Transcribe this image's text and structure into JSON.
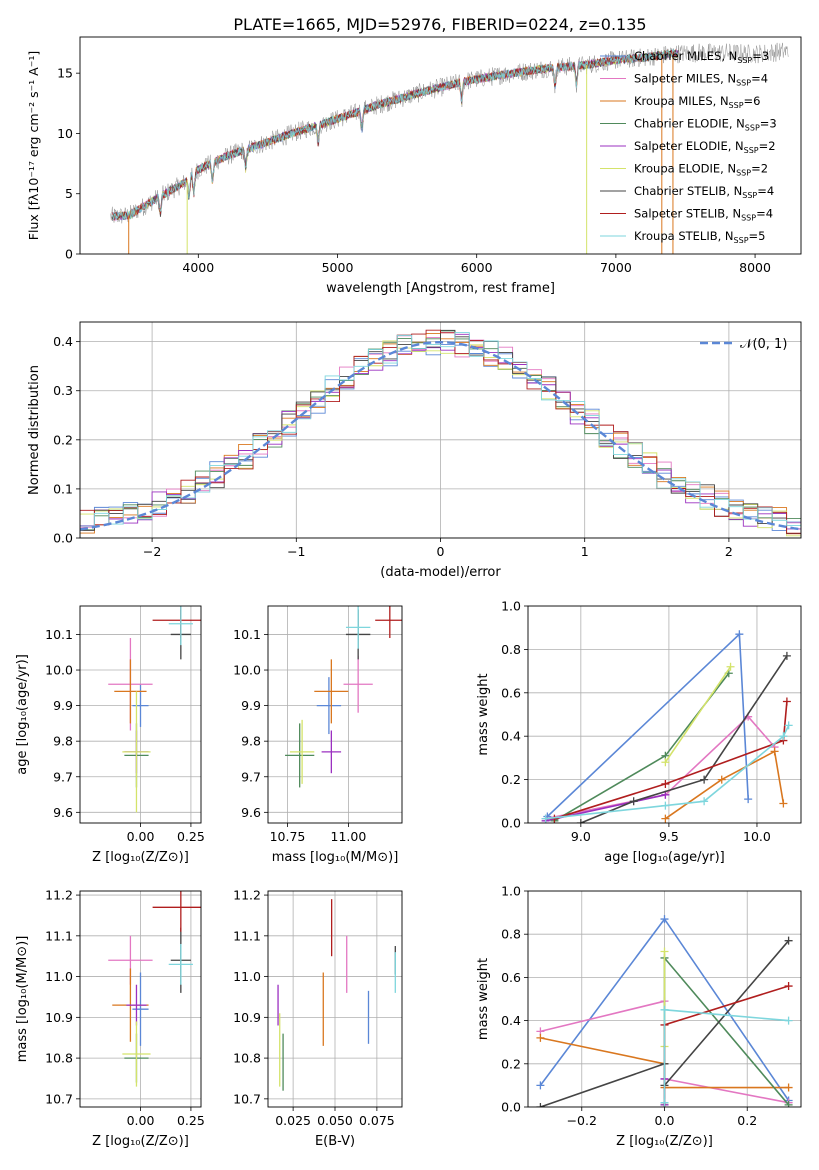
{
  "figure": {
    "title": "PLATE=1665, MJD=52976, FIBERID=0224, z=0.135"
  },
  "legend_entries": [
    {
      "text": "Chabrier MILES, N",
      "sub": "SSP",
      "tail": "=3",
      "color": "#5b87d6"
    },
    {
      "text": "Salpeter MILES, N",
      "sub": "SSP",
      "tail": "=4",
      "color": "#e377c2"
    },
    {
      "text": "Kroupa MILES, N",
      "sub": "SSP",
      "tail": "=6",
      "color": "#d9771f"
    },
    {
      "text": "Chabrier ELODIE, N",
      "sub": "SSP",
      "tail": "=3",
      "color": "#4f8a5b"
    },
    {
      "text": "Salpeter ELODIE, N",
      "sub": "SSP",
      "tail": "=2",
      "color": "#9b30c0"
    },
    {
      "text": "Kroupa ELODIE, N",
      "sub": "SSP",
      "tail": "=2",
      "color": "#d4e36a"
    },
    {
      "text": "Chabrier STELIB, N",
      "sub": "SSP",
      "tail": "=4",
      "color": "#444444"
    },
    {
      "text": "Salpeter STELIB, N",
      "sub": "SSP",
      "tail": "=4",
      "color": "#b01e1e"
    },
    {
      "text": "Kroupa STELIB, N",
      "sub": "SSP",
      "tail": "=5",
      "color": "#7ed6dd"
    }
  ],
  "chart_data": [
    {
      "id": "spectrum",
      "type": "line",
      "xlabel": "wavelength [Angstrom, rest frame]",
      "ylabel": "Flux [fλ10⁻¹⁷ erg cm⁻² s⁻¹ A⁻¹]",
      "xlim": [
        3150,
        8330
      ],
      "ylim": [
        0,
        18
      ],
      "xticks": [
        "4000",
        "5000",
        "6000",
        "7000",
        "8000"
      ],
      "yticks": [
        "0",
        "5",
        "10",
        "15"
      ],
      "series": [
        {
          "name": "observed spectrum",
          "x": [
            3350,
            3500,
            3700,
            3900,
            4000,
            4200,
            4400,
            4700,
            5000,
            5300,
            5600,
            5900,
            6200,
            6500,
            6800,
            7000,
            7200,
            7400,
            7600,
            7800,
            8000,
            8200
          ],
          "y": [
            3.1,
            3.2,
            4.6,
            5.9,
            7.0,
            8.1,
            8.9,
            10.1,
            11.2,
            12.4,
            13.4,
            14.3,
            14.9,
            15.4,
            15.7,
            16.1,
            16.3,
            16.6,
            16.7,
            16.7,
            16.6,
            16.8
          ]
        }
      ],
      "grid": false,
      "legend": "top-right"
    },
    {
      "id": "residuals",
      "type": "line",
      "xlabel": "(data-model)/error",
      "ylabel": "Normed distribution",
      "xlim": [
        -2.5,
        2.5
      ],
      "ylim": [
        0,
        0.44
      ],
      "xticks": [
        "−2",
        "−1",
        "0",
        "1",
        "2"
      ],
      "yticks": [
        "0.0",
        "0.1",
        "0.2",
        "0.3",
        "0.4"
      ],
      "legend_label": "𝒩(0, 1)",
      "series": [
        {
          "name": "𝒩(0, 1)",
          "type": "gaussian",
          "mean": 0,
          "sigma": 1
        }
      ],
      "grid": true,
      "legend": "top-right"
    },
    {
      "id": "age-vs-Z",
      "type": "scatter",
      "xlabel": "Z [log₁₀(Z/Z⊙)]",
      "ylabel": "age  [log₁₀(age/yr)]",
      "xlim": [
        -0.3,
        0.3
      ],
      "ylim": [
        9.57,
        10.18
      ],
      "xticks": [
        "0.00",
        "0.25"
      ],
      "yticks": [
        "9.6",
        "9.7",
        "9.8",
        "9.9",
        "10.0",
        "10.1"
      ],
      "points": [
        {
          "x": 0.0,
          "xerr": 0.04,
          "y": 9.9,
          "yerr": 0.06,
          "c": "#5b87d6"
        },
        {
          "x": -0.05,
          "xerr": 0.11,
          "y": 9.96,
          "yerr": 0.13,
          "c": "#e377c2"
        },
        {
          "x": -0.05,
          "xerr": 0.08,
          "y": 9.94,
          "yerr": 0.09,
          "c": "#d9771f"
        },
        {
          "x": -0.02,
          "xerr": 0.06,
          "y": 9.76,
          "yerr": 0.09,
          "c": "#4f8a5b"
        },
        {
          "x": -0.02,
          "xerr": 0.06,
          "y": 9.77,
          "yerr": 0.06,
          "c": "#9b30c0"
        },
        {
          "x": -0.02,
          "xerr": 0.07,
          "y": 9.77,
          "yerr": 0.17,
          "c": "#d4e36a"
        },
        {
          "x": 0.2,
          "xerr": 0.05,
          "y": 10.1,
          "yerr": 0.07,
          "c": "#444444"
        },
        {
          "x": 0.2,
          "xerr": 0.14,
          "y": 10.14,
          "yerr": 0.05,
          "c": "#b01e1e"
        },
        {
          "x": 0.2,
          "xerr": 0.06,
          "y": 10.13,
          "yerr": 0.06,
          "c": "#7ed6dd"
        }
      ]
    },
    {
      "id": "age-vs-mass",
      "type": "scatter",
      "xlabel": "mass [log₁₀(M/M⊙)]",
      "ylabel": "",
      "xlim": [
        10.67,
        11.22
      ],
      "ylim": [
        9.57,
        10.18
      ],
      "xticks": [
        "10.75",
        "11.00"
      ],
      "yticks": [
        "9.6",
        "9.7",
        "9.8",
        "9.9",
        "10.0",
        "10.1"
      ],
      "points": [
        {
          "x": 10.92,
          "xerr": 0.05,
          "y": 9.9,
          "yerr": 0.08,
          "c": "#5b87d6"
        },
        {
          "x": 11.04,
          "xerr": 0.06,
          "y": 9.96,
          "yerr": 0.08,
          "c": "#e377c2"
        },
        {
          "x": 10.93,
          "xerr": 0.07,
          "y": 9.94,
          "yerr": 0.09,
          "c": "#d9771f"
        },
        {
          "x": 10.8,
          "xerr": 0.06,
          "y": 9.76,
          "yerr": 0.09,
          "c": "#4f8a5b"
        },
        {
          "x": 10.93,
          "xerr": 0.04,
          "y": 9.77,
          "yerr": 0.06,
          "c": "#9b30c0"
        },
        {
          "x": 10.81,
          "xerr": 0.05,
          "y": 9.77,
          "yerr": 0.09,
          "c": "#d4e36a"
        },
        {
          "x": 11.04,
          "xerr": 0.05,
          "y": 10.1,
          "yerr": 0.07,
          "c": "#444444"
        },
        {
          "x": 11.17,
          "xerr": 0.06,
          "y": 10.14,
          "yerr": 0.05,
          "c": "#b01e1e"
        },
        {
          "x": 11.04,
          "xerr": 0.05,
          "y": 10.12,
          "yerr": 0.06,
          "c": "#7ed6dd"
        }
      ]
    },
    {
      "id": "weight-vs-age",
      "type": "line",
      "xlabel": "age  [log₁₀(age/yr)]",
      "ylabel": "mass weight",
      "xlim": [
        8.7,
        10.25
      ],
      "ylim": [
        0,
        1
      ],
      "xticks": [
        "9.0",
        "9.5",
        "10.0"
      ],
      "yticks": [
        "0.0",
        "0.2",
        "0.4",
        "0.6",
        "0.8",
        "1.0"
      ],
      "series": [
        {
          "c": "#5b87d6",
          "x": [
            8.81,
            9.9,
            9.95
          ],
          "y": [
            0.03,
            0.87,
            0.11
          ]
        },
        {
          "c": "#e377c2",
          "x": [
            8.8,
            9.48,
            9.95,
            10.1
          ],
          "y": [
            0.02,
            0.13,
            0.49,
            0.35
          ]
        },
        {
          "c": "#d9771f",
          "x": [
            9.48,
            9.8,
            10.1,
            10.15
          ],
          "y": [
            0.02,
            0.2,
            0.33,
            0.09
          ]
        },
        {
          "c": "#4f8a5b",
          "x": [
            8.85,
            9.48,
            9.84
          ],
          "y": [
            0.01,
            0.31,
            0.69
          ]
        },
        {
          "c": "#9b30c0",
          "x": [
            8.8,
            9.48
          ],
          "y": [
            0.01,
            0.13
          ]
        },
        {
          "c": "#d4e36a",
          "x": [
            9.48,
            9.85
          ],
          "y": [
            0.28,
            0.72
          ]
        },
        {
          "c": "#444444",
          "x": [
            9.0,
            9.3,
            9.7,
            10.17
          ],
          "y": [
            0.0,
            0.1,
            0.2,
            0.77
          ]
        },
        {
          "c": "#b01e1e",
          "x": [
            8.85,
            9.48,
            10.15,
            10.17
          ],
          "y": [
            0.02,
            0.18,
            0.38,
            0.56
          ]
        },
        {
          "c": "#7ed6dd",
          "x": [
            8.8,
            9.48,
            9.7,
            10.15,
            10.18
          ],
          "y": [
            0.02,
            0.08,
            0.1,
            0.4,
            0.45
          ]
        }
      ]
    },
    {
      "id": "mass-vs-Z",
      "type": "scatter",
      "xlabel": "Z [log₁₀(Z/Z⊙)]",
      "ylabel": "mass [log₁₀(M/M⊙)]",
      "xlim": [
        -0.3,
        0.3
      ],
      "ylim": [
        10.68,
        11.21
      ],
      "xticks": [
        "0.00",
        "0.25"
      ],
      "yticks": [
        "10.7",
        "10.8",
        "10.9",
        "11.0",
        "11.1",
        "11.2"
      ],
      "points": [
        {
          "x": 0.0,
          "xerr": 0.04,
          "y": 10.92,
          "yerr": 0.09,
          "c": "#5b87d6"
        },
        {
          "x": -0.05,
          "xerr": 0.11,
          "y": 11.04,
          "yerr": 0.06,
          "c": "#e377c2"
        },
        {
          "x": -0.05,
          "xerr": 0.09,
          "y": 10.93,
          "yerr": 0.09,
          "c": "#d9771f"
        },
        {
          "x": -0.02,
          "xerr": 0.06,
          "y": 10.8,
          "yerr": 0.06,
          "c": "#4f8a5b"
        },
        {
          "x": -0.02,
          "xerr": 0.05,
          "y": 10.93,
          "yerr": 0.05,
          "c": "#9b30c0"
        },
        {
          "x": -0.02,
          "xerr": 0.07,
          "y": 10.81,
          "yerr": 0.08,
          "c": "#d4e36a"
        },
        {
          "x": 0.2,
          "xerr": 0.05,
          "y": 11.04,
          "yerr": 0.08,
          "c": "#444444"
        },
        {
          "x": 0.2,
          "xerr": 0.14,
          "y": 11.17,
          "yerr": 0.06,
          "c": "#b01e1e"
        },
        {
          "x": 0.2,
          "xerr": 0.06,
          "y": 11.03,
          "yerr": 0.05,
          "c": "#7ed6dd"
        }
      ]
    },
    {
      "id": "mass-vs-ebv",
      "type": "scatter",
      "xlabel": "E(B-V)",
      "ylabel": "",
      "xlim": [
        0.01,
        0.09
      ],
      "ylim": [
        10.68,
        11.21
      ],
      "xticks": [
        "0.025",
        "0.050",
        "0.075"
      ],
      "yticks": [
        "10.7",
        "10.8",
        "10.9",
        "11.0",
        "11.1",
        "11.2"
      ],
      "points": [
        {
          "x": 0.07,
          "xerr": 0,
          "y": 10.9,
          "yerr": 0.065,
          "c": "#5b87d6"
        },
        {
          "x": 0.057,
          "xerr": 0,
          "y": 11.03,
          "yerr": 0.07,
          "c": "#e377c2"
        },
        {
          "x": 0.043,
          "xerr": 0,
          "y": 10.92,
          "yerr": 0.09,
          "c": "#d9771f"
        },
        {
          "x": 0.019,
          "xerr": 0,
          "y": 10.79,
          "yerr": 0.07,
          "c": "#4f8a5b"
        },
        {
          "x": 0.016,
          "xerr": 0,
          "y": 10.93,
          "yerr": 0.05,
          "c": "#9b30c0"
        },
        {
          "x": 0.017,
          "xerr": 0,
          "y": 10.82,
          "yerr": 0.09,
          "c": "#d4e36a"
        },
        {
          "x": 0.086,
          "xerr": 0,
          "y": 11.04,
          "yerr": 0.035,
          "c": "#444444"
        },
        {
          "x": 0.048,
          "xerr": 0,
          "y": 11.12,
          "yerr": 0.07,
          "c": "#b01e1e"
        },
        {
          "x": 0.086,
          "xerr": 0,
          "y": 11.01,
          "yerr": 0.05,
          "c": "#7ed6dd"
        }
      ]
    },
    {
      "id": "weight-vs-Z",
      "type": "line",
      "xlabel": "Z [log₁₀(Z/Z⊙)]",
      "ylabel": "mass weight",
      "xlim": [
        -0.33,
        0.33
      ],
      "ylim": [
        0,
        1
      ],
      "xticks": [
        "−0.2",
        "0.0",
        "0.2"
      ],
      "yticks": [
        "0.0",
        "0.2",
        "0.4",
        "0.6",
        "0.8",
        "1.0"
      ],
      "series": [
        {
          "c": "#5b87d6",
          "x": [
            -0.3,
            0.0,
            0.3
          ],
          "y": [
            0.1,
            0.87,
            0.03
          ]
        },
        {
          "c": "#e377c2",
          "x": [
            -0.3,
            0.0,
            0.0,
            0.3
          ],
          "y": [
            0.35,
            0.49,
            0.13,
            0.02
          ]
        },
        {
          "c": "#d9771f",
          "x": [
            -0.3,
            0.0,
            0.0,
            0.3
          ],
          "y": [
            0.32,
            0.2,
            0.09,
            0.09
          ]
        },
        {
          "c": "#4f8a5b",
          "x": [
            0.0,
            0.0,
            0.3
          ],
          "y": [
            0.01,
            0.69,
            0.01
          ]
        },
        {
          "c": "#9b30c0",
          "x": [
            0.0,
            0.0
          ],
          "y": [
            0.01,
            0.13
          ]
        },
        {
          "c": "#d4e36a",
          "x": [
            0.0,
            0.0
          ],
          "y": [
            0.28,
            0.72
          ]
        },
        {
          "c": "#444444",
          "x": [
            -0.3,
            0.0,
            0.0,
            0.3
          ],
          "y": [
            0.0,
            0.2,
            0.1,
            0.77
          ]
        },
        {
          "c": "#b01e1e",
          "x": [
            0.0,
            0.0,
            0.3
          ],
          "y": [
            0.02,
            0.38,
            0.56
          ]
        },
        {
          "c": "#7ed6dd",
          "x": [
            0.0,
            0.0,
            0.3
          ],
          "y": [
            0.02,
            0.45,
            0.4
          ]
        }
      ]
    }
  ]
}
